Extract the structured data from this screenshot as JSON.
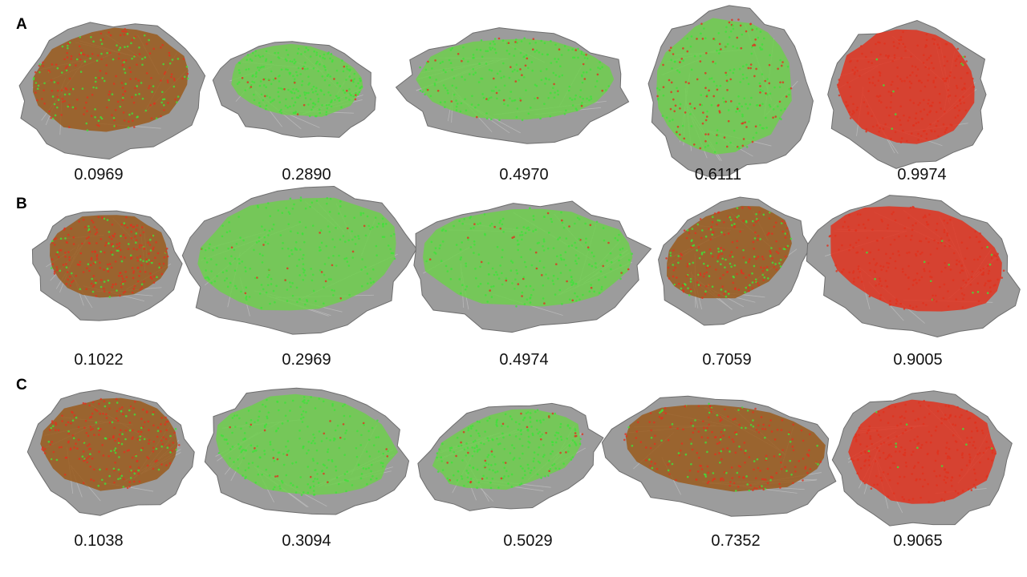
{
  "colors": {
    "mesh": "#9c9c9c",
    "mesh_dark": "#6e6e6e",
    "green_points": "#3fe23a",
    "red_points": "#e0321e"
  },
  "rows": [
    {
      "label": "A",
      "values": [
        "0.0969",
        "0.2890",
        "0.4970",
        "0.6111",
        "0.9974"
      ]
    },
    {
      "label": "B",
      "values": [
        "0.1022",
        "0.2969",
        "0.4974",
        "0.7059",
        "0.9005"
      ]
    },
    {
      "label": "C",
      "values": [
        "0.1038",
        "0.3094",
        "0.5029",
        "0.7352",
        "0.9065"
      ]
    }
  ]
}
